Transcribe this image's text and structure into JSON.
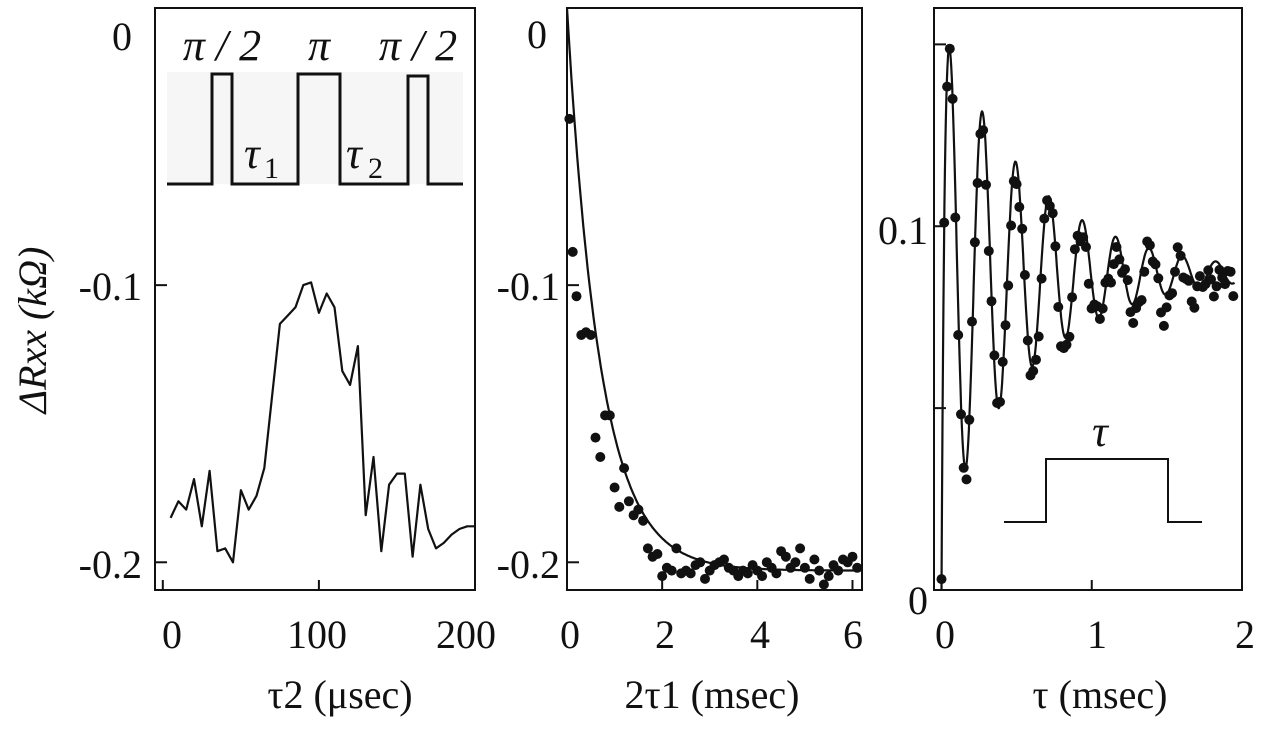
{
  "chart_data": [
    {
      "type": "line",
      "panel": "left",
      "xlabel": "τ2 (μsec)",
      "ylabel": "ΔRxx (kΩ)",
      "xlim": [
        -5,
        200
      ],
      "ylim": [
        -0.21,
        0.0
      ],
      "x_ticks": [
        0,
        100,
        200
      ],
      "x_tick_labels": [
        "0",
        "100",
        "200"
      ],
      "y_ticks": [
        0,
        -0.1,
        -0.2
      ],
      "y_tick_labels": [
        "0",
        "-0.1",
        "-0.2"
      ],
      "series": [
        {
          "x": [
            5,
            10,
            15,
            20,
            25,
            30,
            35,
            40,
            45,
            50,
            55,
            60,
            65,
            70,
            75,
            80,
            85,
            90,
            95,
            100,
            105,
            110,
            115,
            120,
            125,
            130,
            135,
            140,
            145,
            150,
            155,
            160,
            165,
            170,
            175,
            180,
            185,
            190,
            195,
            200
          ],
          "y": [
            -0.184,
            -0.178,
            -0.181,
            -0.17,
            -0.187,
            -0.167,
            -0.196,
            -0.195,
            -0.2,
            -0.174,
            -0.181,
            -0.176,
            -0.166,
            -0.14,
            -0.114,
            -0.111,
            -0.108,
            -0.1,
            -0.099,
            -0.11,
            -0.103,
            -0.108,
            -0.131,
            -0.136,
            -0.122,
            -0.183,
            -0.162,
            -0.196,
            -0.172,
            -0.168,
            -0.168,
            -0.198,
            -0.172,
            -0.188,
            -0.195,
            -0.193,
            -0.19,
            -0.188,
            -0.187,
            -0.187
          ]
        }
      ],
      "inset": {
        "type": "pulse-sequence",
        "labels": [
          "π / 2",
          "π",
          "π / 2",
          "τ",
          "1",
          "τ",
          "2"
        ]
      }
    },
    {
      "type": "scatter",
      "panel": "middle",
      "xlabel": "2τ1 (msec)",
      "xlim": [
        0,
        6.2
      ],
      "ylim": [
        -0.21,
        0.0
      ],
      "x_ticks": [
        0,
        2,
        4,
        6
      ],
      "x_tick_labels": [
        "0",
        "2",
        "4",
        "6"
      ],
      "y_ticks": [
        0,
        -0.1,
        -0.2
      ],
      "y_tick_labels": [
        "0",
        "-0.1",
        "-0.2"
      ],
      "points": {
        "x": [
          0.05,
          0.12,
          0.2,
          0.3,
          0.4,
          0.5,
          0.6,
          0.7,
          0.8,
          0.9,
          1.0,
          1.1,
          1.2,
          1.3,
          1.4,
          1.5,
          1.6,
          1.7,
          1.8,
          1.9,
          2.0,
          2.1,
          2.2,
          2.3,
          2.4,
          2.5,
          2.6,
          2.7,
          2.8,
          2.9,
          3.0,
          3.1,
          3.2,
          3.3,
          3.4,
          3.5,
          3.6,
          3.7,
          3.8,
          3.9,
          4.0,
          4.1,
          4.2,
          4.3,
          4.4,
          4.5,
          4.6,
          4.7,
          4.8,
          4.9,
          5.0,
          5.1,
          5.2,
          5.3,
          5.4,
          5.5,
          5.6,
          5.7,
          5.8,
          5.9,
          6.0,
          6.1
        ],
        "y": [
          -0.04,
          -0.088,
          -0.104,
          -0.118,
          -0.117,
          -0.118,
          -0.155,
          -0.162,
          -0.147,
          -0.147,
          -0.173,
          -0.18,
          -0.166,
          -0.178,
          -0.183,
          -0.181,
          -0.185,
          -0.195,
          -0.198,
          -0.197,
          -0.205,
          -0.202,
          -0.203,
          -0.195,
          -0.204,
          -0.203,
          -0.204,
          -0.201,
          -0.2,
          -0.206,
          -0.203,
          -0.201,
          -0.2,
          -0.199,
          -0.202,
          -0.203,
          -0.205,
          -0.203,
          -0.204,
          -0.201,
          -0.203,
          -0.205,
          -0.2,
          -0.202,
          -0.204,
          -0.196,
          -0.198,
          -0.202,
          -0.2,
          -0.195,
          -0.202,
          -0.206,
          -0.199,
          -0.203,
          -0.208,
          -0.205,
          -0.201,
          -0.203,
          -0.199,
          -0.2,
          -0.198,
          -0.202
        ]
      },
      "fit": {
        "label": "exponential decay",
        "y0": 0.0,
        "y_inf": -0.203,
        "tau_msec": 0.7
      }
    },
    {
      "type": "scatter",
      "panel": "right",
      "xlabel": "τ  (msec)",
      "xlim": [
        -0.05,
        2.0
      ],
      "ylim": [
        0.0,
        0.16
      ],
      "x_ticks": [
        0,
        1,
        2
      ],
      "x_tick_labels": [
        "0",
        "1",
        "2"
      ],
      "y_ticks": [
        0,
        0.05,
        0.1,
        0.15
      ],
      "y_tick_labels": [
        "0",
        "",
        "0.1",
        ""
      ],
      "fit": {
        "label": "damped oscillation",
        "offset": 0.087,
        "amp": 0.07,
        "period_msec": 0.222,
        "decay_msec": 0.6,
        "phase_center": 0.05
      },
      "inset": {
        "type": "pulse",
        "label": "τ"
      }
    }
  ]
}
